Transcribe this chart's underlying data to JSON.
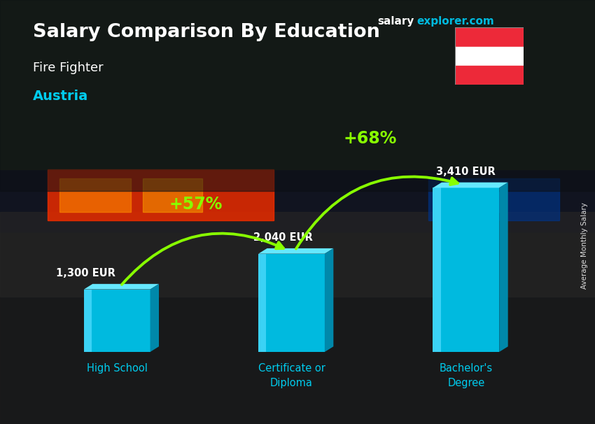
{
  "title": "Salary Comparison By Education",
  "subtitle": "Fire Fighter",
  "country": "Austria",
  "categories": [
    "High School",
    "Certificate or\nDiploma",
    "Bachelor's\nDegree"
  ],
  "values": [
    1300,
    2040,
    3410
  ],
  "value_labels": [
    "1,300 EUR",
    "2,040 EUR",
    "3,410 EUR"
  ],
  "bar_color_front": "#00BADF",
  "bar_color_light": "#55DDFF",
  "bar_color_side": "#0088AA",
  "bar_color_top": "#66E8FF",
  "pct_changes": [
    "+57%",
    "+68%"
  ],
  "pct_color": "#88FF00",
  "title_color": "#FFFFFF",
  "subtitle_color": "#FFFFFF",
  "country_color": "#00CCEE",
  "cat_label_color": "#00CCEE",
  "val_label_color": "#FFFFFF",
  "ylabel": "Average Monthly Salary",
  "website_salary": "salary",
  "website_rest": "explorer.com",
  "website_salary_color": "#FFFFFF",
  "website_rest_color": "#00BADF",
  "bg_dark": "#1a1e28",
  "flag_red": "#ED2939",
  "flag_white": "#FFFFFF"
}
